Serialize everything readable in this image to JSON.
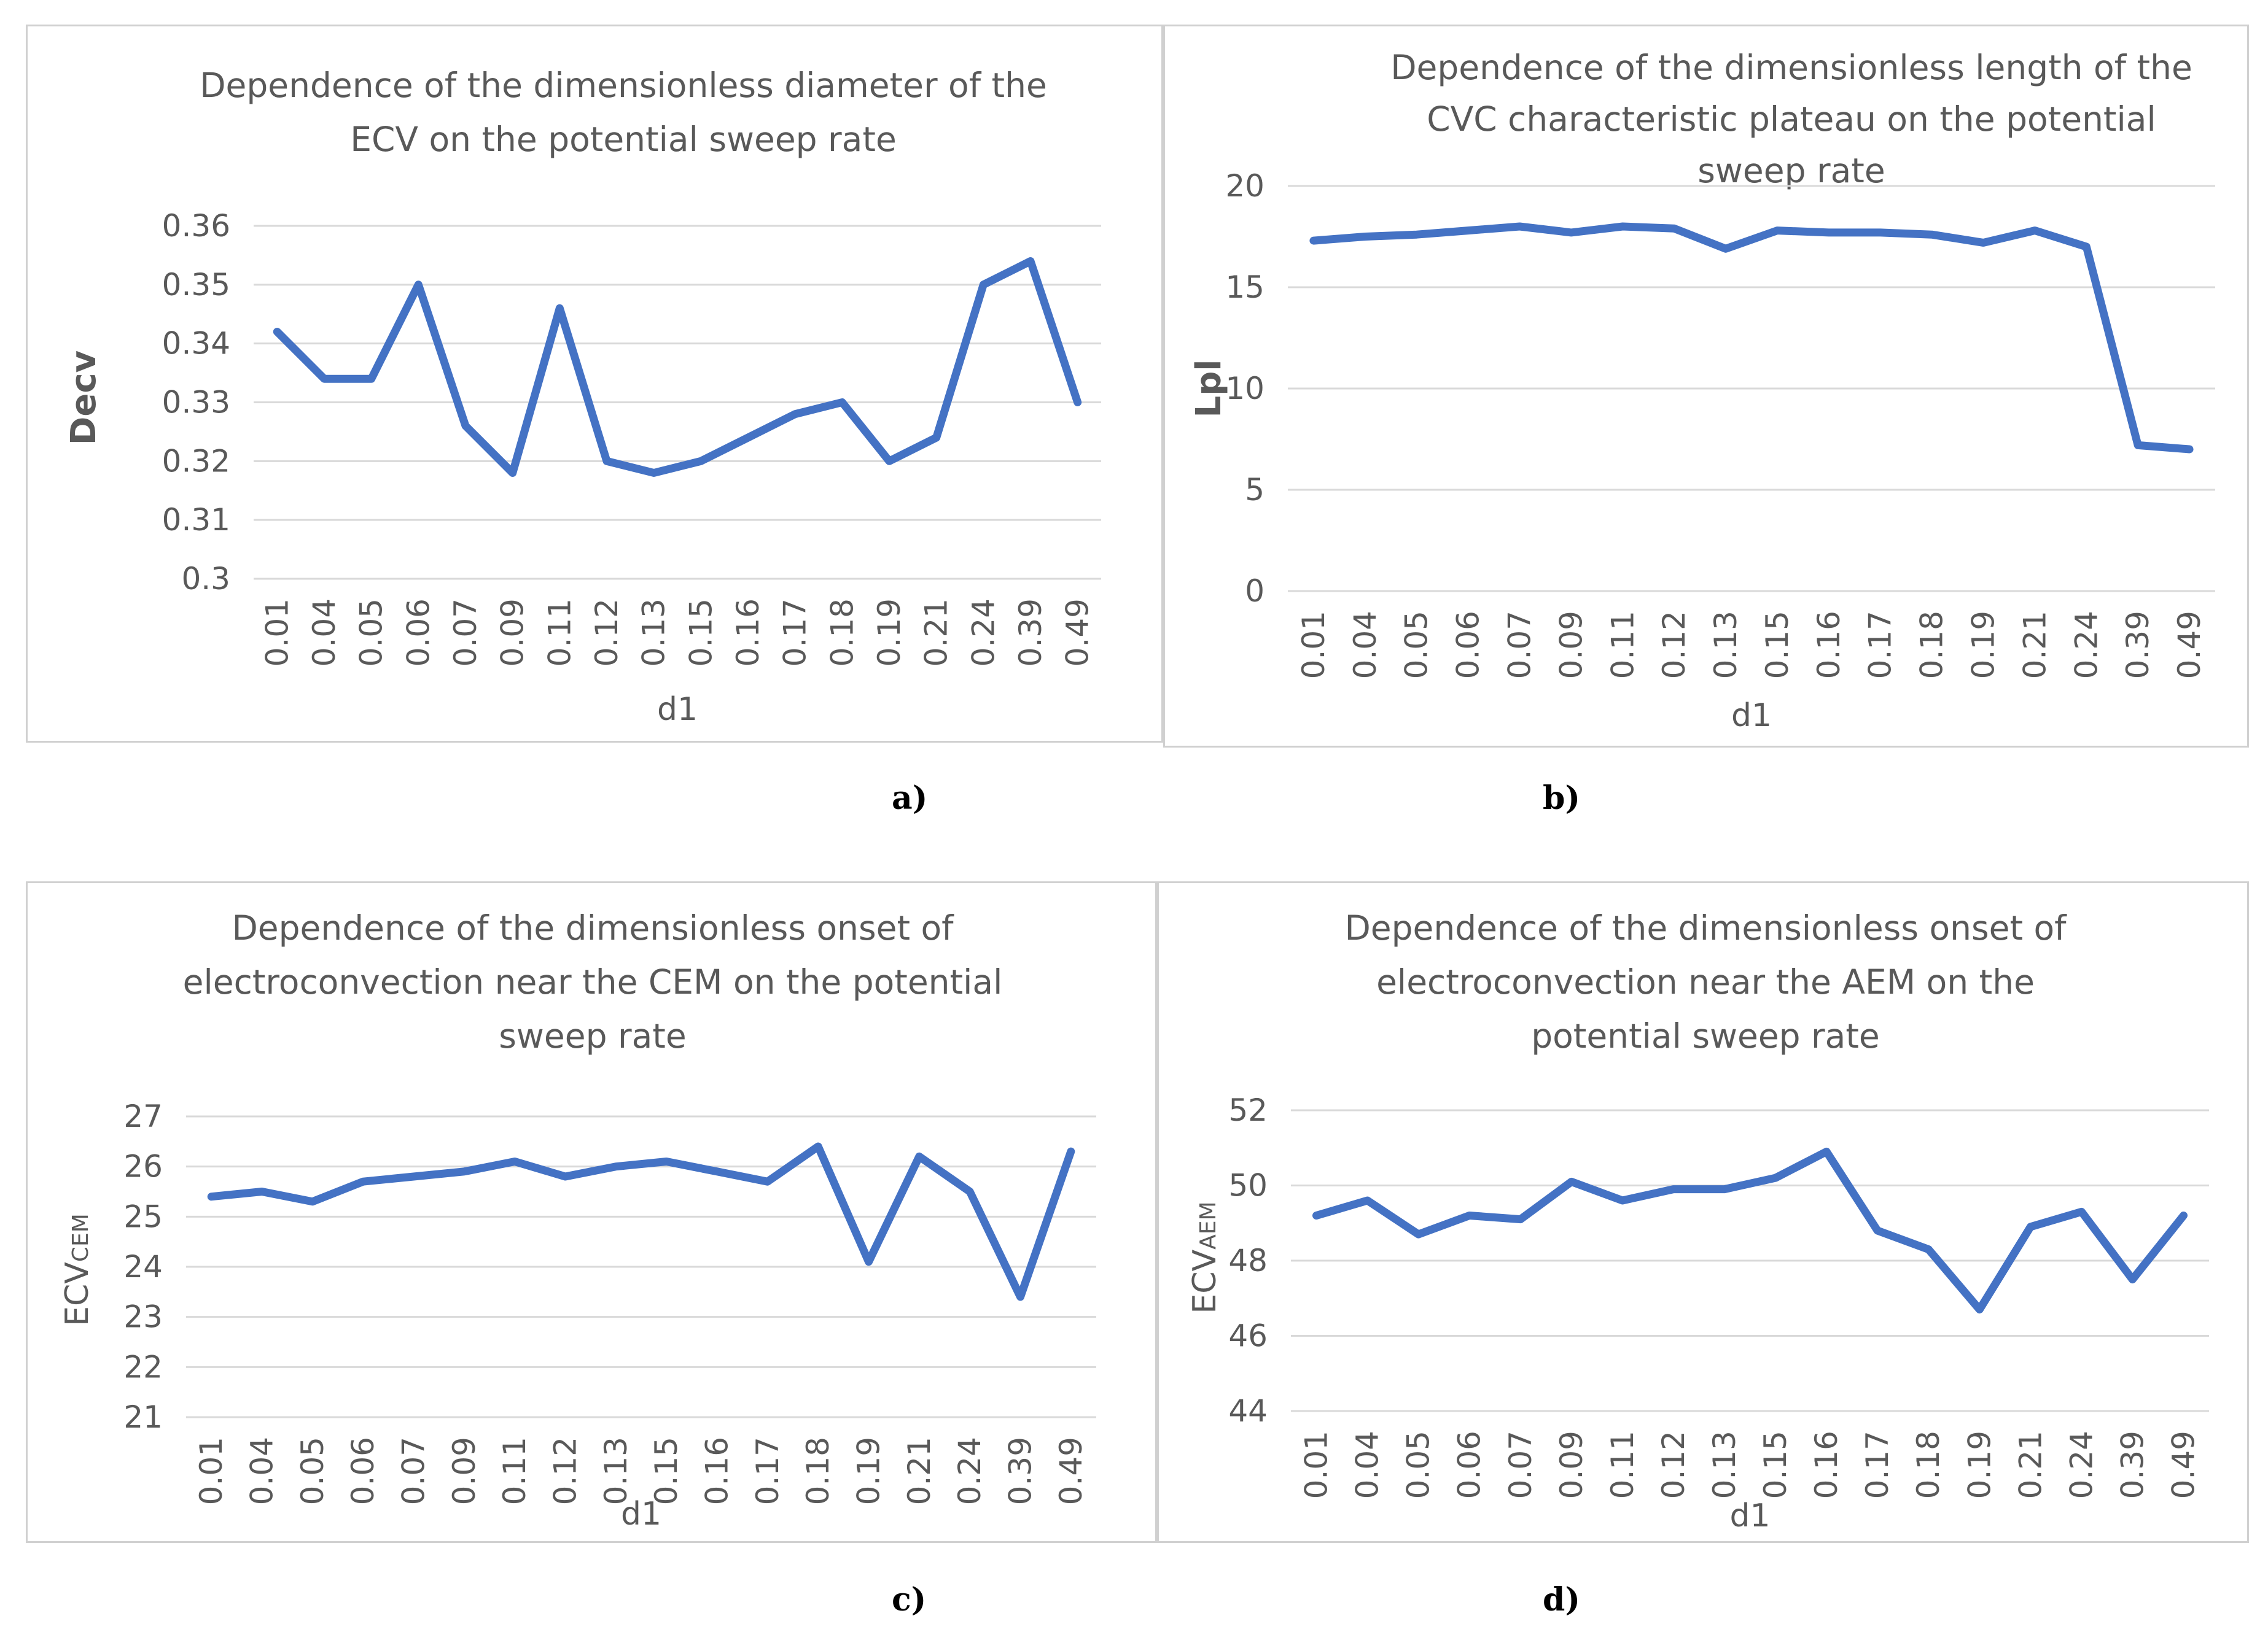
{
  "colors": {
    "series": "#4472c4",
    "grid": "#d9d9d9",
    "text": "#595959",
    "frame": "#d0d0d0"
  },
  "panel_labels": [
    "a)",
    "b)",
    "c)",
    "d)"
  ],
  "chart_data": [
    {
      "type": "line",
      "title_lines": [
        "Dependence of the dimensionless diameter of the",
        "ECV on the potential sweep rate"
      ],
      "xlabel": "d1",
      "ylabel": "Decv",
      "categories": [
        "0.01",
        "0.04",
        "0.05",
        "0.06",
        "0.07",
        "0.09",
        "0.11",
        "0.12",
        "0.13",
        "0.15",
        "0.16",
        "0.17",
        "0.18",
        "0.19",
        "0.21",
        "0.24",
        "0.39",
        "0.49"
      ],
      "values": [
        0.342,
        0.334,
        0.334,
        0.35,
        0.326,
        0.318,
        0.346,
        0.32,
        0.318,
        0.32,
        0.324,
        0.328,
        0.33,
        0.32,
        0.324,
        0.35,
        0.354,
        0.33
      ],
      "ylim": [
        0.3,
        0.36
      ],
      "yticks": [
        "0.36",
        "0.35",
        "0.34",
        "0.33",
        "0.32",
        "0.31",
        "0.3"
      ],
      "grid": true
    },
    {
      "type": "line",
      "title_lines": [
        "Dependence of the dimensionless length of the",
        "CVC characteristic plateau on the potential",
        "sweep rate"
      ],
      "xlabel": "d1",
      "ylabel": "Lpl",
      "categories": [
        "0.01",
        "0.04",
        "0.05",
        "0.06",
        "0.07",
        "0.09",
        "0.11",
        "0.12",
        "0.13",
        "0.15",
        "0.16",
        "0.17",
        "0.18",
        "0.19",
        "0.21",
        "0.24",
        "0.39",
        "0.49"
      ],
      "values": [
        17.3,
        17.5,
        17.6,
        17.8,
        18.0,
        17.7,
        18.0,
        17.9,
        16.9,
        17.8,
        17.7,
        17.7,
        17.6,
        17.2,
        17.8,
        17.0,
        7.2,
        7.0
      ],
      "ylim": [
        0,
        20
      ],
      "yticks": [
        "20",
        "15",
        "10",
        "5",
        "0"
      ],
      "grid": true
    },
    {
      "type": "line",
      "title_lines": [
        "Dependence of the dimensionless onset of",
        "electroconvection near the CEM on the potential",
        "sweep rate"
      ],
      "xlabel": "d1",
      "ylabel": "ECV",
      "ylabel_sub": "CEM",
      "categories": [
        "0.01",
        "0.04",
        "0.05",
        "0.06",
        "0.07",
        "0.09",
        "0.11",
        "0.12",
        "0.13",
        "0.15",
        "0.16",
        "0.17",
        "0.18",
        "0.19",
        "0.21",
        "0.24",
        "0.39",
        "0.49"
      ],
      "values": [
        25.4,
        25.5,
        25.3,
        25.7,
        25.8,
        25.9,
        26.1,
        25.8,
        26.0,
        26.1,
        25.9,
        25.7,
        26.4,
        24.1,
        26.2,
        25.5,
        23.4,
        26.3
      ],
      "ylim": [
        21,
        27
      ],
      "yticks": [
        "27",
        "26",
        "25",
        "24",
        "23",
        "22",
        "21"
      ],
      "grid": true
    },
    {
      "type": "line",
      "title_lines": [
        "Dependence of the dimensionless onset of",
        "electroconvection near the AEM on the",
        "potential sweep rate"
      ],
      "xlabel": "d1",
      "ylabel": "ECV",
      "ylabel_sub": "AEM",
      "categories": [
        "0.01",
        "0.04",
        "0.05",
        "0.06",
        "0.07",
        "0.09",
        "0.11",
        "0.12",
        "0.13",
        "0.15",
        "0.16",
        "0.17",
        "0.18",
        "0.19",
        "0.21",
        "0.24",
        "0.39",
        "0.49"
      ],
      "values": [
        49.2,
        49.6,
        48.7,
        49.2,
        49.1,
        50.1,
        49.6,
        49.9,
        49.9,
        50.2,
        50.9,
        48.8,
        48.3,
        46.7,
        48.9,
        49.3,
        47.5,
        49.2
      ],
      "ylim": [
        44,
        52
      ],
      "yticks": [
        "52",
        "50",
        "48",
        "46",
        "44"
      ],
      "grid": true
    }
  ]
}
